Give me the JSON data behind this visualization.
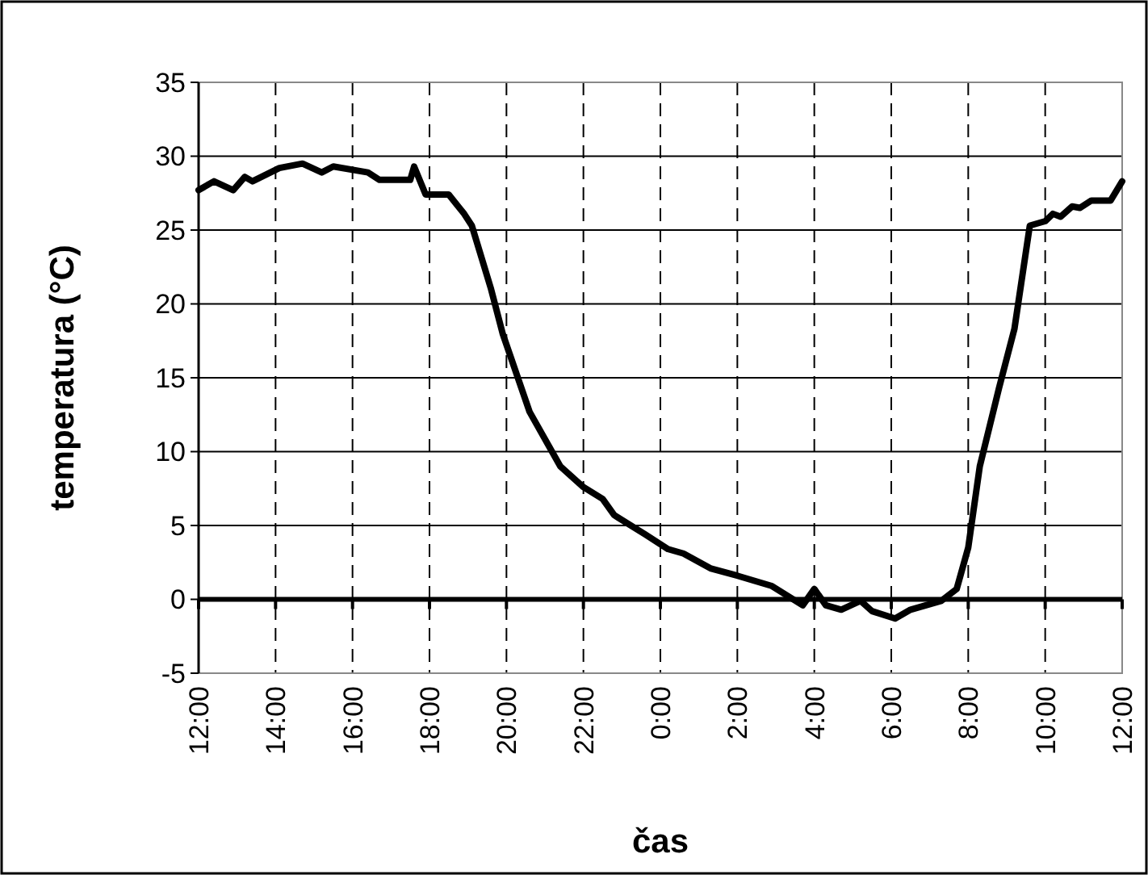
{
  "chart_data": {
    "type": "line",
    "xlabel": "čas",
    "ylabel": "temperatura (°C)",
    "xlim": [
      "2000-01-01T12:00",
      "2000-01-02T12:00"
    ],
    "xticks": [
      {
        "value": "2000-01-01T12:00",
        "label": "12:00"
      },
      {
        "value": "2000-01-01T14:00",
        "label": "14:00"
      },
      {
        "value": "2000-01-01T16:00",
        "label": "16:00"
      },
      {
        "value": "2000-01-01T18:00",
        "label": "18:00"
      },
      {
        "value": "2000-01-01T20:00",
        "label": "20:00"
      },
      {
        "value": "2000-01-01T22:00",
        "label": "22:00"
      },
      {
        "value": "2000-01-02T00:00",
        "label": "0:00"
      },
      {
        "value": "2000-01-02T02:00",
        "label": "2:00"
      },
      {
        "value": "2000-01-02T04:00",
        "label": "4:00"
      },
      {
        "value": "2000-01-02T06:00",
        "label": "6:00"
      },
      {
        "value": "2000-01-02T08:00",
        "label": "8:00"
      },
      {
        "value": "2000-01-02T10:00",
        "label": "10:00"
      },
      {
        "value": "2000-01-02T12:00",
        "label": "12:00"
      }
    ],
    "ylim": [
      -5,
      35
    ],
    "yticks": [
      -5,
      0,
      5,
      10,
      15,
      20,
      25,
      30,
      35
    ],
    "grid": true,
    "marker": "none",
    "line_style": "solid",
    "series": [
      {
        "color": "#000000",
        "x": [
          "2000-01-01T12:00",
          "2000-01-01T12:24",
          "2000-01-01T12:54",
          "2000-01-01T13:12",
          "2000-01-01T13:24",
          "2000-01-01T14:06",
          "2000-01-01T14:42",
          "2000-01-01T15:12",
          "2000-01-01T15:30",
          "2000-01-01T16:24",
          "2000-01-01T16:42",
          "2000-01-01T17:30",
          "2000-01-01T17:36",
          "2000-01-01T17:54",
          "2000-01-01T18:30",
          "2000-01-01T18:54",
          "2000-01-01T19:06",
          "2000-01-01T19:36",
          "2000-01-01T19:54",
          "2000-01-01T20:36",
          "2000-01-01T21:24",
          "2000-01-01T22:00",
          "2000-01-01T22:30",
          "2000-01-01T22:48",
          "2000-01-01T23:36",
          "2000-01-02T00:12",
          "2000-01-02T00:36",
          "2000-01-02T01:18",
          "2000-01-02T02:00",
          "2000-01-02T02:54",
          "2000-01-02T03:42",
          "2000-01-02T04:00",
          "2000-01-02T04:18",
          "2000-01-02T04:42",
          "2000-01-02T05:12",
          "2000-01-02T05:30",
          "2000-01-02T06:06",
          "2000-01-02T06:30",
          "2000-01-02T07:18",
          "2000-01-02T07:42",
          "2000-01-02T08:00",
          "2000-01-02T08:18",
          "2000-01-02T08:48",
          "2000-01-02T09:12",
          "2000-01-02T09:36",
          "2000-01-02T10:00",
          "2000-01-02T10:12",
          "2000-01-02T10:24",
          "2000-01-02T10:42",
          "2000-01-02T10:54",
          "2000-01-02T11:12",
          "2000-01-02T11:42",
          "2000-01-02T12:00"
        ],
        "values": [
          27.7,
          28.3,
          27.7,
          28.6,
          28.3,
          29.2,
          29.5,
          28.9,
          29.3,
          28.9,
          28.4,
          28.4,
          29.3,
          27.4,
          27.4,
          26.1,
          25.3,
          21.0,
          18.0,
          12.7,
          9.0,
          7.6,
          6.8,
          5.7,
          4.4,
          3.4,
          3.1,
          2.1,
          1.6,
          0.9,
          -0.4,
          0.7,
          -0.4,
          -0.7,
          -0.1,
          -0.8,
          -1.3,
          -0.7,
          -0.1,
          0.7,
          3.5,
          9.0,
          14.3,
          18.3,
          25.3,
          25.6,
          26.1,
          25.9,
          26.6,
          26.5,
          27.0,
          27.0,
          28.3
        ]
      }
    ]
  }
}
